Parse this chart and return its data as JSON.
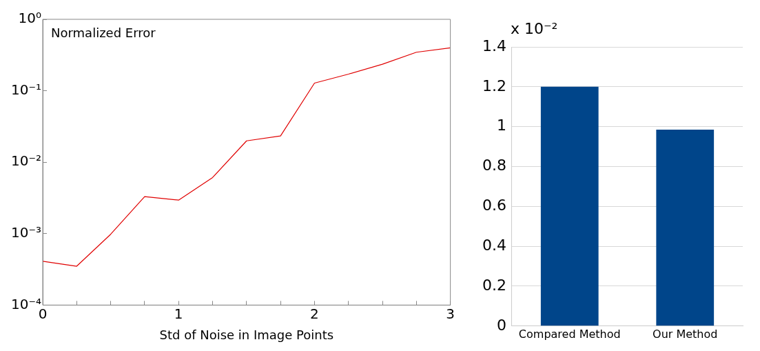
{
  "chart_data": [
    {
      "type": "line",
      "title": "Normalized Error",
      "xlabel": "Std of Noise in Image Points",
      "x": [
        0,
        0.25,
        0.5,
        0.75,
        1,
        1.25,
        1.5,
        1.75,
        2,
        2.25,
        2.5,
        2.75,
        3
      ],
      "series": [
        {
          "color": "#e00000",
          "values": [
            0.00041,
            0.00035,
            0.00098,
            0.0033,
            0.00295,
            0.0061,
            0.0199,
            0.0233,
            0.128,
            0.171,
            0.235,
            0.346,
            0.399
          ]
        }
      ],
      "xlim": [
        0,
        3
      ],
      "xticks": [
        0,
        {
          "value": 0.25,
          "label": null
        },
        {
          "value": 0.5,
          "label": null
        },
        {
          "value": 0.75,
          "label": null
        },
        1,
        {
          "value": 1.25,
          "label": null
        },
        {
          "value": 1.5,
          "label": null
        },
        {
          "value": 1.75,
          "label": null
        },
        2,
        {
          "value": 2.25,
          "label": null
        },
        {
          "value": 2.5,
          "label": null
        },
        {
          "value": 2.75,
          "label": null
        },
        3
      ],
      "ylim": [
        0.0001,
        1
      ],
      "yticks": [
        {
          "value": 0.0001,
          "label": "10⁻⁴"
        },
        {
          "value": 0.001,
          "label": "10⁻³"
        },
        {
          "value": 0.01,
          "label": "10⁻²"
        },
        {
          "value": 0.1,
          "label": "10⁻¹"
        },
        {
          "value": 1,
          "label": "10⁰"
        }
      ],
      "log": "y",
      "marker": "none",
      "grid": false
    },
    {
      "type": "bar",
      "categories": [
        "Compared Method",
        "Our Method"
      ],
      "values": [
        1.2,
        0.985
      ],
      "color": "#00458a",
      "ylim": [
        0,
        1.4
      ],
      "yticks": [
        0,
        0.2,
        0.4,
        0.6,
        0.8,
        1,
        1.2,
        1.4
      ],
      "grid": "y",
      "annotations": [
        "x 10⁻²"
      ]
    }
  ]
}
